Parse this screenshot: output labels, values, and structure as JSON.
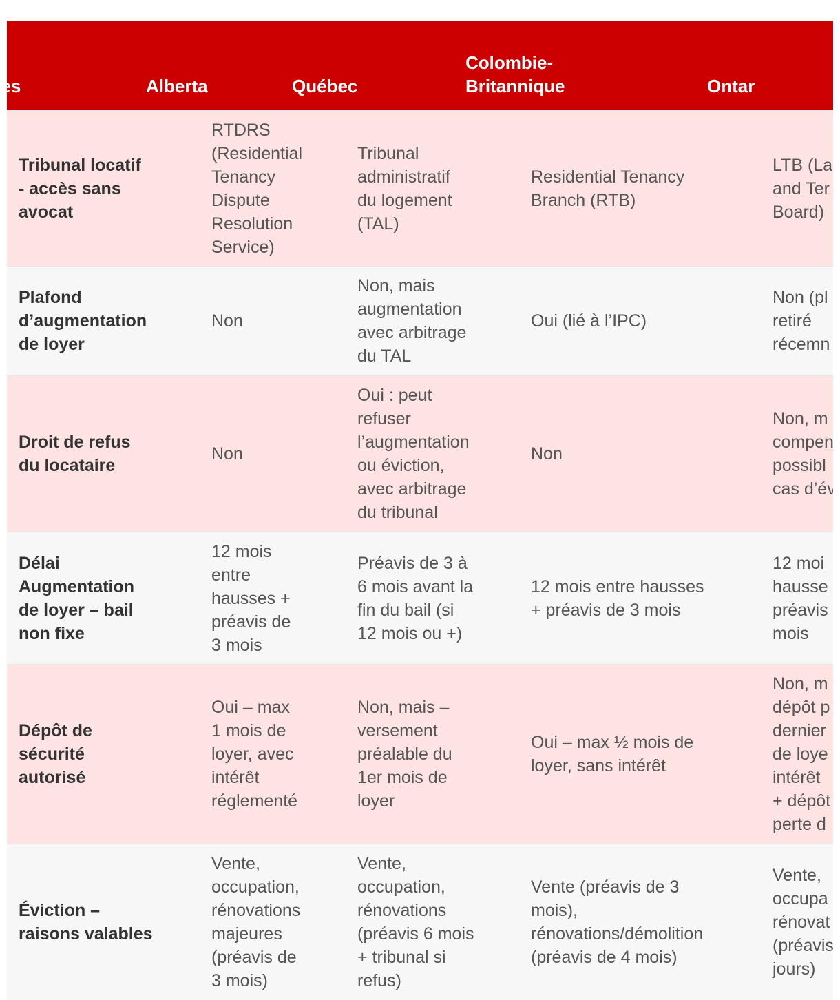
{
  "table": {
    "header": [
      [
        "Critères"
      ],
      [
        "Alberta"
      ],
      [
        "Québec"
      ],
      [
        "Colombie-",
        "Britannique"
      ],
      [
        "Ontar"
      ]
    ],
    "rows": [
      [
        [
          "Tribunal locatif",
          "- accès sans",
          "avocat"
        ],
        [
          "RTDRS",
          "(Residential",
          "Tenancy",
          "Dispute",
          "Resolution",
          "Service)"
        ],
        [
          "Tribunal",
          "administratif",
          "du logement",
          "(TAL)"
        ],
        [
          "Residential Tenancy",
          "Branch (RTB)"
        ],
        [
          "LTB (La",
          "and Ter",
          "Board)"
        ]
      ],
      [
        [
          "Plafond",
          "d’augmentation",
          "de loyer"
        ],
        [
          "Non"
        ],
        [
          "Non, mais",
          "augmentation",
          "avec arbitrage",
          "du TAL"
        ],
        [
          "Oui (lié à l’IPC)"
        ],
        [
          "Non (pl",
          "retiré",
          "récemn"
        ]
      ],
      [
        [
          "Droit de refus",
          "du locataire"
        ],
        [
          "Non"
        ],
        [
          "Oui : peut",
          "refuser",
          "l’augmentation",
          "ou éviction,",
          "avec arbitrage",
          "du tribunal"
        ],
        [
          "Non"
        ],
        [
          "Non, m",
          "compen",
          "possibl",
          "cas d’év"
        ]
      ],
      [
        [
          "Délai",
          "Augmentation",
          "de loyer – bail",
          "non fixe"
        ],
        [
          "12 mois",
          "entre",
          "hausses +",
          "préavis de",
          "3 mois"
        ],
        [
          "Préavis de 3 à",
          "6 mois avant la",
          "fin du bail (si",
          "12 mois ou +)"
        ],
        [
          "12 mois entre hausses",
          "+ préavis de 3 mois"
        ],
        [
          "12 moi",
          "hausse",
          "préavis",
          "mois"
        ]
      ],
      [
        [
          "Dépôt de",
          "sécurité",
          "autorisé"
        ],
        [
          "Oui – max",
          "1 mois de",
          "loyer, avec",
          "intérêt",
          "réglementé"
        ],
        [
          "Non, mais –",
          "versement",
          "préalable du",
          "1er mois de",
          "loyer"
        ],
        [
          "Oui – max ½ mois de",
          "loyer, sans intérêt"
        ],
        [
          "Non, m",
          "dépôt p",
          "dernier",
          "de loye",
          "intérêt",
          "+ dépôt",
          "perte d"
        ]
      ],
      [
        [
          "Éviction –",
          "raisons valables"
        ],
        [
          "Vente,",
          "occupation,",
          "rénovations",
          "majeures",
          "(préavis de",
          "3 mois)"
        ],
        [
          "Vente,",
          "occupation,",
          "rénovations",
          "(préavis 6 mois",
          "+ tribunal si",
          "refus)"
        ],
        [
          "Vente (préavis de 3",
          "mois),",
          "rénovations/démolition",
          "(préavis de 4 mois)"
        ],
        [
          "Vente,",
          "occupa",
          "rénovat",
          "(préavis",
          "jours)"
        ]
      ]
    ]
  }
}
